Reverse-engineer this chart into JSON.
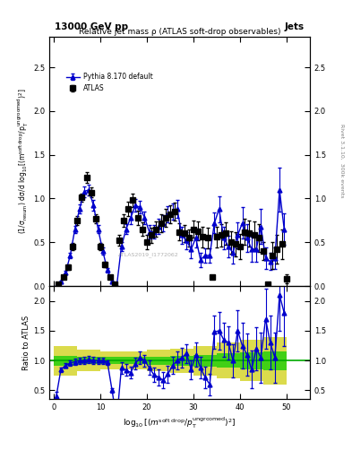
{
  "title_top": "13000 GeV pp",
  "title_right": "Jets",
  "plot_title": "Relative jet mass ρ (ATLAS soft-drop observables)",
  "xlabel": "log$_{10}$[(m$^{\\rm soft\\,drop}$/p$_{\\rm T}^{\\rm ungroomed}$)$^2$]",
  "ylabel_main": "(1/σ$_{\\rm resum}$) dσ/d log$_{10}$[(m$^{\\rm soft\\,drop}$/p$_{\\rm T}^{\\rm ungroomed}$)$^2$]",
  "ylabel_ratio": "Ratio to ATLAS",
  "right_label": "Rivet 3.1.10,  300k events",
  "watermark": "ATLAS2019_I1772062",
  "legend_atlas": "ATLAS",
  "legend_pythia": "Pythia 8.170 default",
  "xlim": [
    -1,
    55
  ],
  "ylim_main": [
    0,
    2.85
  ],
  "ylim_ratio": [
    0.35,
    2.25
  ],
  "atlas_x": [
    1,
    2,
    3,
    4,
    5,
    6,
    7,
    8,
    9,
    10,
    11,
    12,
    13,
    14,
    15,
    16,
    17,
    18,
    19,
    20,
    21,
    22,
    23,
    24,
    25,
    26,
    27,
    28,
    29,
    30,
    31,
    32,
    33,
    34,
    35,
    36,
    37,
    38,
    39,
    40,
    41,
    42,
    43,
    44,
    45,
    46,
    47,
    48,
    49,
    50
  ],
  "atlas_y": [
    0.02,
    0.1,
    0.22,
    0.45,
    0.75,
    1.01,
    1.24,
    1.07,
    0.77,
    0.45,
    0.25,
    0.1,
    0.02,
    0.52,
    0.75,
    0.88,
    0.98,
    0.78,
    0.65,
    0.5,
    0.58,
    0.65,
    0.72,
    0.78,
    0.82,
    0.85,
    0.62,
    0.6,
    0.55,
    0.65,
    0.63,
    0.56,
    0.55,
    0.1,
    0.56,
    0.58,
    0.6,
    0.5,
    0.48,
    0.45,
    0.62,
    0.6,
    0.58,
    0.55,
    0.4,
    0.02,
    0.35,
    0.42,
    0.48,
    0.08
  ],
  "atlas_yerr": [
    0.01,
    0.02,
    0.03,
    0.04,
    0.05,
    0.05,
    0.06,
    0.06,
    0.05,
    0.04,
    0.03,
    0.02,
    0.01,
    0.06,
    0.07,
    0.08,
    0.08,
    0.08,
    0.08,
    0.08,
    0.09,
    0.09,
    0.1,
    0.1,
    0.1,
    0.1,
    0.1,
    0.1,
    0.1,
    0.1,
    0.11,
    0.12,
    0.12,
    0.01,
    0.12,
    0.13,
    0.13,
    0.13,
    0.14,
    0.14,
    0.15,
    0.15,
    0.16,
    0.16,
    0.1,
    0.01,
    0.15,
    0.16,
    0.17,
    0.05
  ],
  "pythia_x": [
    0.5,
    1.5,
    2.5,
    3.5,
    4.5,
    5.5,
    6.5,
    7.5,
    8.5,
    9.5,
    10.5,
    11.5,
    12.5,
    13.5,
    14.5,
    15.5,
    16.5,
    17.5,
    18.5,
    19.5,
    20.5,
    21.5,
    22.5,
    23.5,
    24.5,
    25.5,
    26.5,
    27.5,
    28.5,
    29.5,
    30.5,
    31.5,
    32.5,
    33.5,
    34.5,
    35.5,
    36.5,
    37.5,
    38.5,
    39.5,
    40.5,
    41.5,
    42.5,
    43.5,
    44.5,
    45.5,
    46.5,
    47.5,
    48.5,
    49.5
  ],
  "pythia_y": [
    0.0,
    0.05,
    0.15,
    0.35,
    0.65,
    0.88,
    1.08,
    1.1,
    0.92,
    0.65,
    0.4,
    0.18,
    0.05,
    0.0,
    0.45,
    0.65,
    0.78,
    0.92,
    0.9,
    0.78,
    0.62,
    0.62,
    0.68,
    0.72,
    0.82,
    0.85,
    0.88,
    0.58,
    0.52,
    0.42,
    0.55,
    0.3,
    0.35,
    0.35,
    0.72,
    0.88,
    0.55,
    0.45,
    0.38,
    0.58,
    0.72,
    0.55,
    0.42,
    0.42,
    0.68,
    0.32,
    0.28,
    0.32,
    1.1,
    0.65
  ],
  "pythia_yerr": [
    0.0,
    0.01,
    0.02,
    0.03,
    0.04,
    0.05,
    0.06,
    0.06,
    0.06,
    0.05,
    0.04,
    0.03,
    0.01,
    0.0,
    0.05,
    0.06,
    0.07,
    0.07,
    0.07,
    0.07,
    0.08,
    0.08,
    0.09,
    0.09,
    0.09,
    0.09,
    0.1,
    0.1,
    0.1,
    0.1,
    0.11,
    0.08,
    0.08,
    0.08,
    0.12,
    0.15,
    0.13,
    0.12,
    0.12,
    0.15,
    0.18,
    0.16,
    0.14,
    0.14,
    0.2,
    0.12,
    0.1,
    0.12,
    0.25,
    0.18
  ],
  "ratio_y": [
    0.4,
    0.85,
    0.92,
    0.96,
    0.98,
    1.0,
    1.0,
    1.02,
    1.0,
    1.0,
    1.0,
    0.97,
    0.5,
    0.0,
    0.88,
    0.84,
    0.8,
    0.95,
    1.05,
    1.0,
    0.88,
    0.76,
    0.72,
    0.67,
    0.77,
    0.92,
    1.0,
    1.05,
    1.12,
    0.85,
    1.1,
    0.88,
    0.72,
    0.6,
    1.48,
    1.5,
    1.35,
    1.3,
    1.0,
    1.5,
    1.25,
    1.1,
    0.85,
    1.2,
    1.05,
    1.7,
    1.3,
    1.05,
    2.1,
    1.8
  ],
  "ratio_yerr": [
    0.08,
    0.04,
    0.04,
    0.04,
    0.05,
    0.05,
    0.06,
    0.06,
    0.06,
    0.05,
    0.05,
    0.04,
    0.04,
    0.04,
    0.1,
    0.1,
    0.1,
    0.1,
    0.1,
    0.1,
    0.12,
    0.12,
    0.14,
    0.14,
    0.14,
    0.14,
    0.15,
    0.16,
    0.16,
    0.16,
    0.2,
    0.18,
    0.18,
    0.18,
    0.28,
    0.32,
    0.28,
    0.28,
    0.28,
    0.35,
    0.38,
    0.36,
    0.32,
    0.36,
    0.42,
    0.5,
    0.45,
    0.42,
    0.6,
    0.55
  ],
  "green_band_x": [
    0,
    5,
    10,
    15,
    20,
    25,
    30,
    35,
    40,
    45,
    50
  ],
  "green_band_height": [
    0.08,
    0.06,
    0.06,
    0.06,
    0.07,
    0.08,
    0.1,
    0.12,
    0.14,
    0.16,
    0.18
  ],
  "yellow_band_x": [
    0,
    5,
    10,
    15,
    20,
    25,
    30,
    35,
    40,
    45,
    50
  ],
  "yellow_band_height": [
    0.25,
    0.18,
    0.15,
    0.15,
    0.18,
    0.2,
    0.25,
    0.3,
    0.35,
    0.4,
    0.45
  ],
  "colors": {
    "atlas_marker": "#000000",
    "pythia_line": "#0000cc",
    "pythia_marker": "#0000cc",
    "green_band": "#00cc00",
    "yellow_band": "#cccc00",
    "ratio_line": "#00aa00"
  }
}
